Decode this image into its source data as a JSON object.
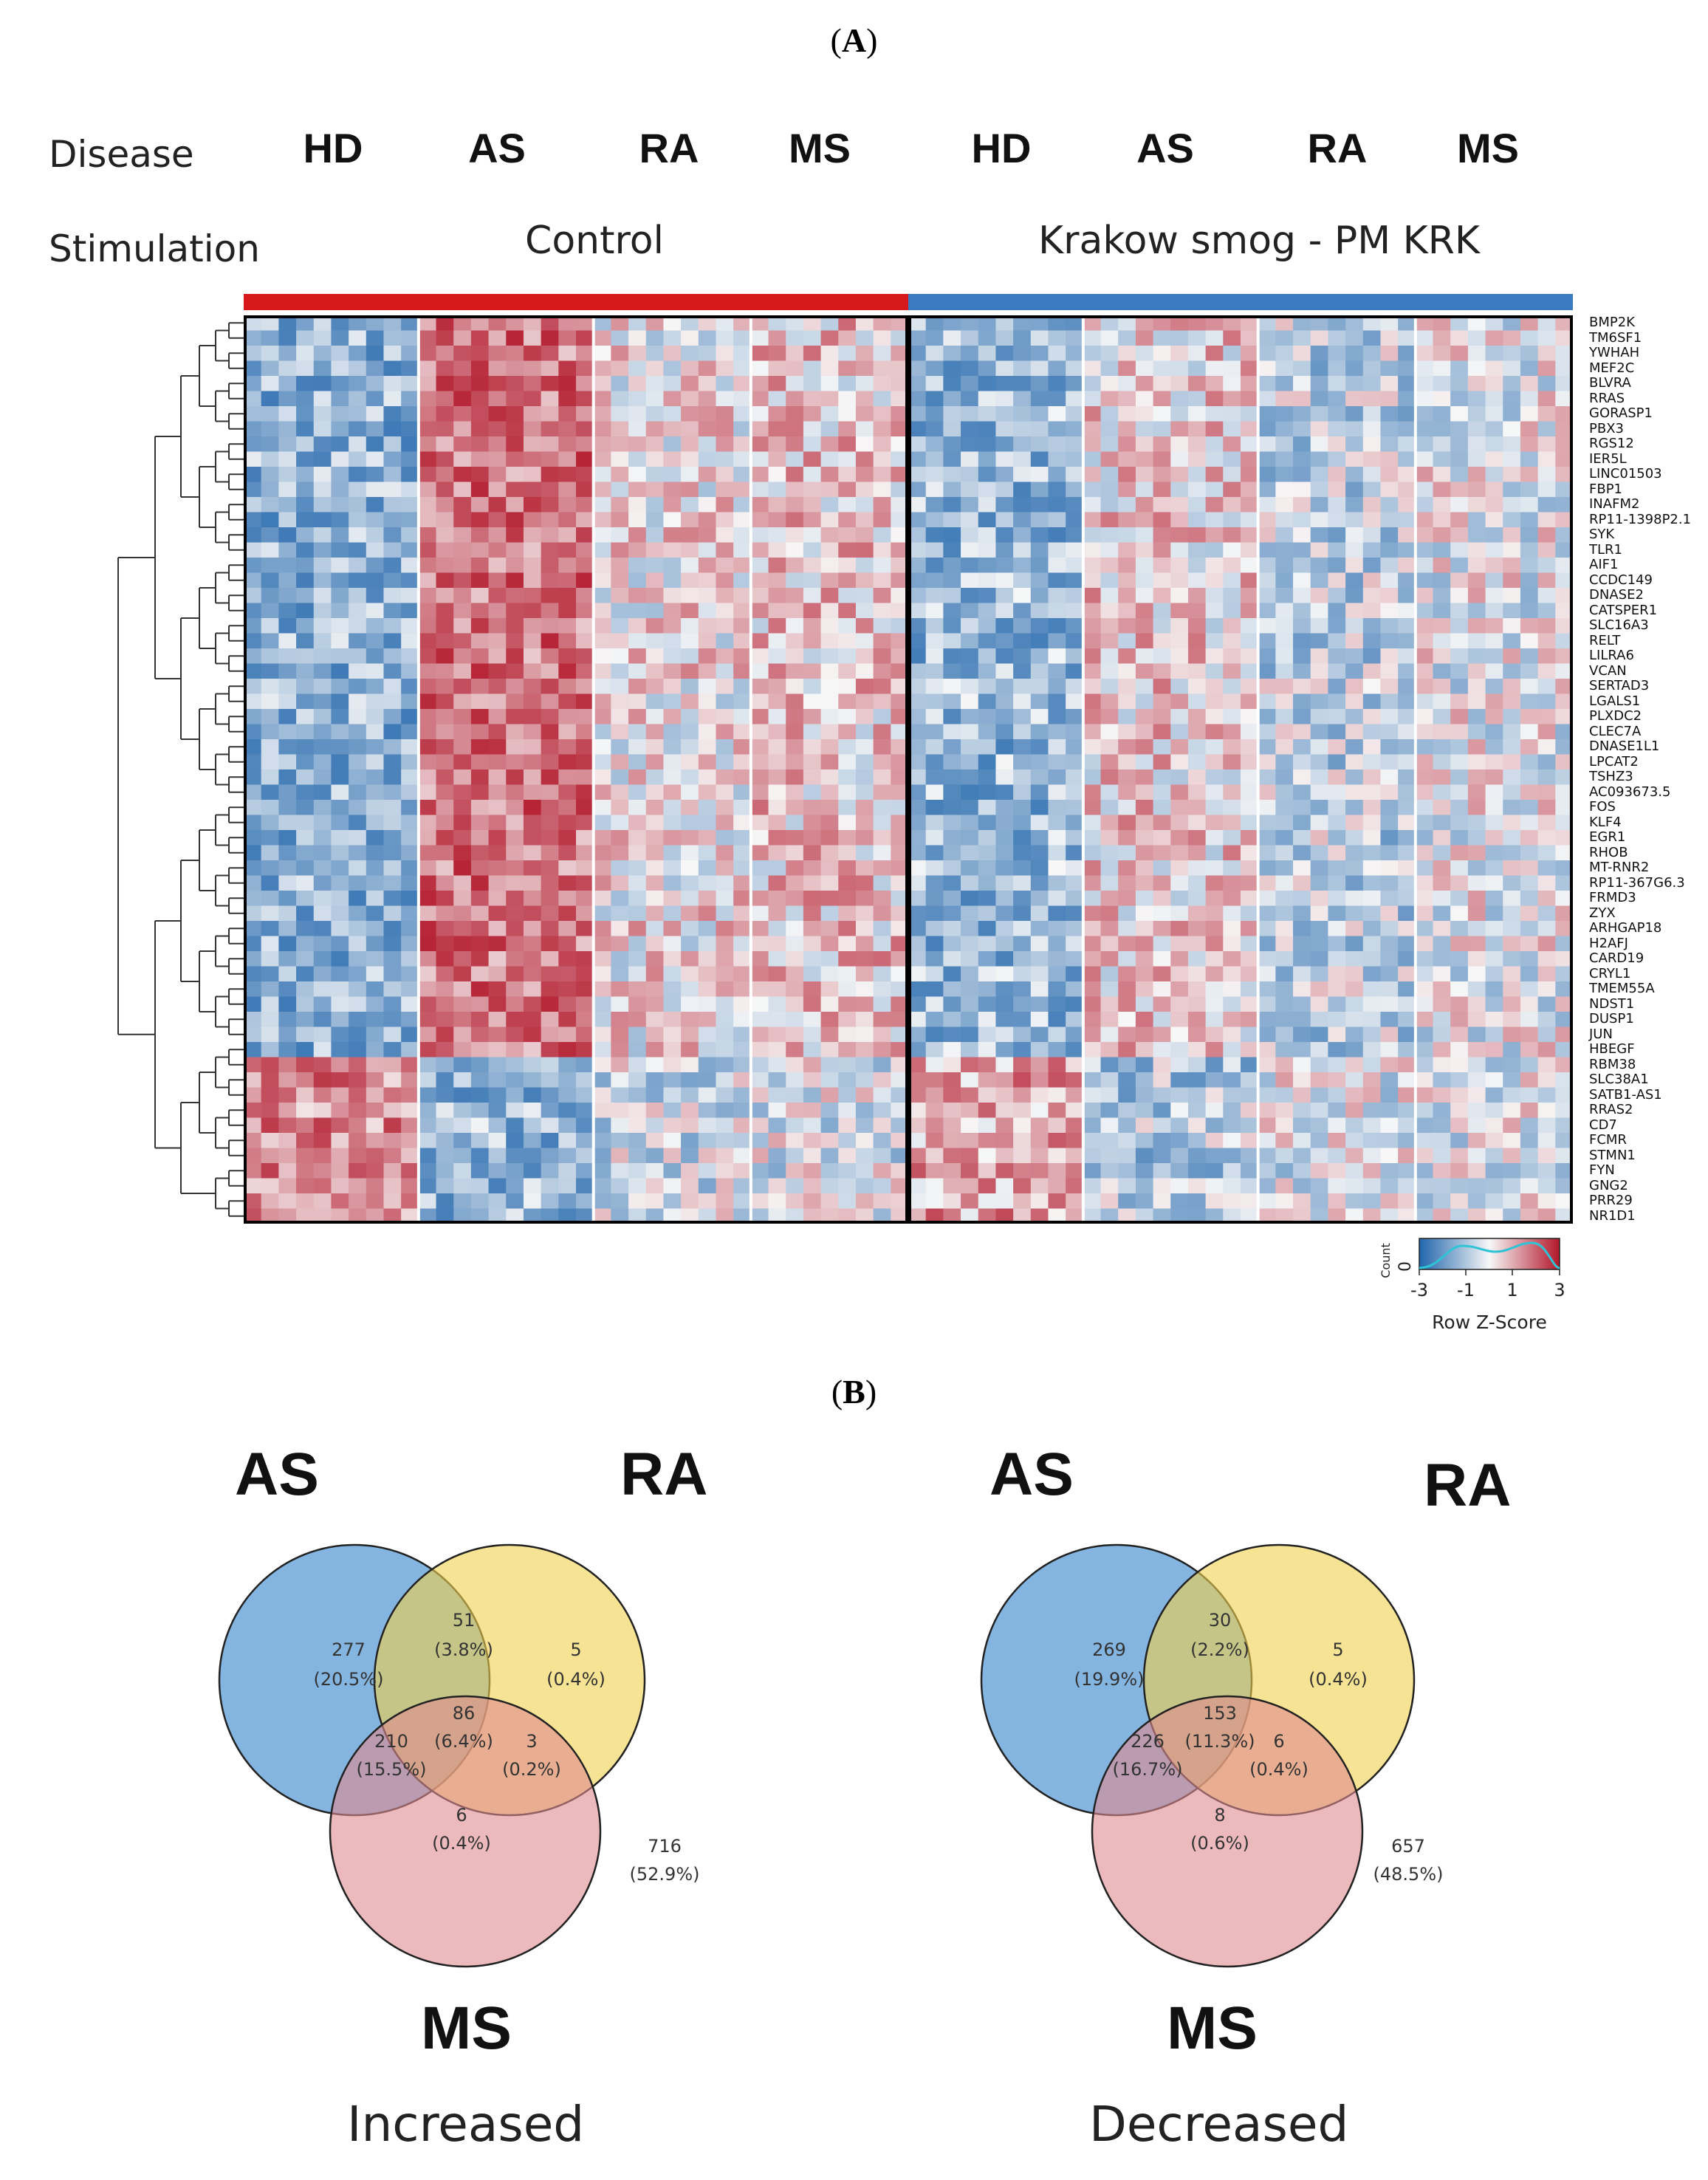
{
  "panel_a_label": "A",
  "panel_b_label": "B",
  "heatmap": {
    "row_label_disease": "Disease",
    "row_label_stimulation": "Stimulation",
    "disease_groups": [
      "HD",
      "AS",
      "RA",
      "MS",
      "HD",
      "AS",
      "RA",
      "MS"
    ],
    "stimulations": [
      "Control",
      "Krakow smog - PM KRK"
    ],
    "stimulation_colors": [
      "#d7191c",
      "#3a7bbf"
    ],
    "genes": [
      "BMP2K",
      "TM6SF1",
      "YWHAH",
      "MEF2C",
      "BLVRA",
      "RRAS",
      "GORASP1",
      "PBX3",
      "RGS12",
      "IER5L",
      "LINC01503",
      "FBP1",
      "INAFM2",
      "RP11-1398P2.1",
      "SYK",
      "TLR1",
      "AIF1",
      "CCDC149",
      "DNASE2",
      "CATSPER1",
      "SLC16A3",
      "RELT",
      "LILRA6",
      "VCAN",
      "SERTAD3",
      "LGALS1",
      "PLXDC2",
      "CLEC7A",
      "DNASE1L1",
      "LPCAT2",
      "TSHZ3",
      "AC093673.5",
      "FOS",
      "KLF4",
      "EGR1",
      "RHOB",
      "MT-RNR2",
      "RP11-367G6.3",
      "FRMD3",
      "ZYX",
      "ARHGAP18",
      "H2AFJ",
      "CARD19",
      "CRYL1",
      "TMEM55A",
      "NDST1",
      "DUSP1",
      "JUN",
      "HBEGF",
      "RBM38",
      "SLC38A1",
      "SATB1-AS1",
      "RRAS2",
      "CD7",
      "FCMR",
      "STMN1",
      "FYN",
      "GNG2",
      "PRR29",
      "NR1D1"
    ],
    "color_key": {
      "title": "Row Z-Score",
      "y_axis_label": "Count",
      "y_tick": "0",
      "x_ticks": [
        "-3",
        "-1",
        "1",
        "3"
      ],
      "low_color": "#2166ac",
      "mid_color": "#f7f7f7",
      "high_color": "#b2182b"
    }
  },
  "venn": [
    {
      "caption": "Increased",
      "set_labels": {
        "AS": "AS",
        "RA": "RA",
        "MS": "MS"
      },
      "regions": {
        "as_only": {
          "n": "277",
          "pct": "(20.5%)"
        },
        "as_ra": {
          "n": "51",
          "pct": "(3.8%)"
        },
        "ra_only": {
          "n": "5",
          "pct": "(0.4%)"
        },
        "all": {
          "n": "86",
          "pct": "(6.4%)"
        },
        "as_ms": {
          "n": "210",
          "pct": "(15.5%)"
        },
        "ra_ms": {
          "n": "3",
          "pct": "(0.2%)"
        },
        "ms_only": {
          "n": "6",
          "pct": "(0.4%)"
        },
        "outside": {
          "n": "716",
          "pct": "(52.9%)"
        }
      }
    },
    {
      "caption": "Decreased",
      "set_labels": {
        "AS": "AS",
        "RA": "RA",
        "MS": "MS"
      },
      "regions": {
        "as_only": {
          "n": "269",
          "pct": "(19.9%)"
        },
        "as_ra": {
          "n": "30",
          "pct": "(2.2%)"
        },
        "ra_only": {
          "n": "5",
          "pct": "(0.4%)"
        },
        "all": {
          "n": "153",
          "pct": "(11.3%)"
        },
        "as_ms": {
          "n": "226",
          "pct": "(16.7%)"
        },
        "ra_ms": {
          "n": "6",
          "pct": "(0.4%)"
        },
        "ms_only": {
          "n": "8",
          "pct": "(0.6%)"
        },
        "outside": {
          "n": "657",
          "pct": "(48.5%)"
        }
      }
    }
  ],
  "venn_colors": {
    "AS": "#5b9bd5",
    "RA": "#f2d04c",
    "MS": "#e08a8f"
  }
}
